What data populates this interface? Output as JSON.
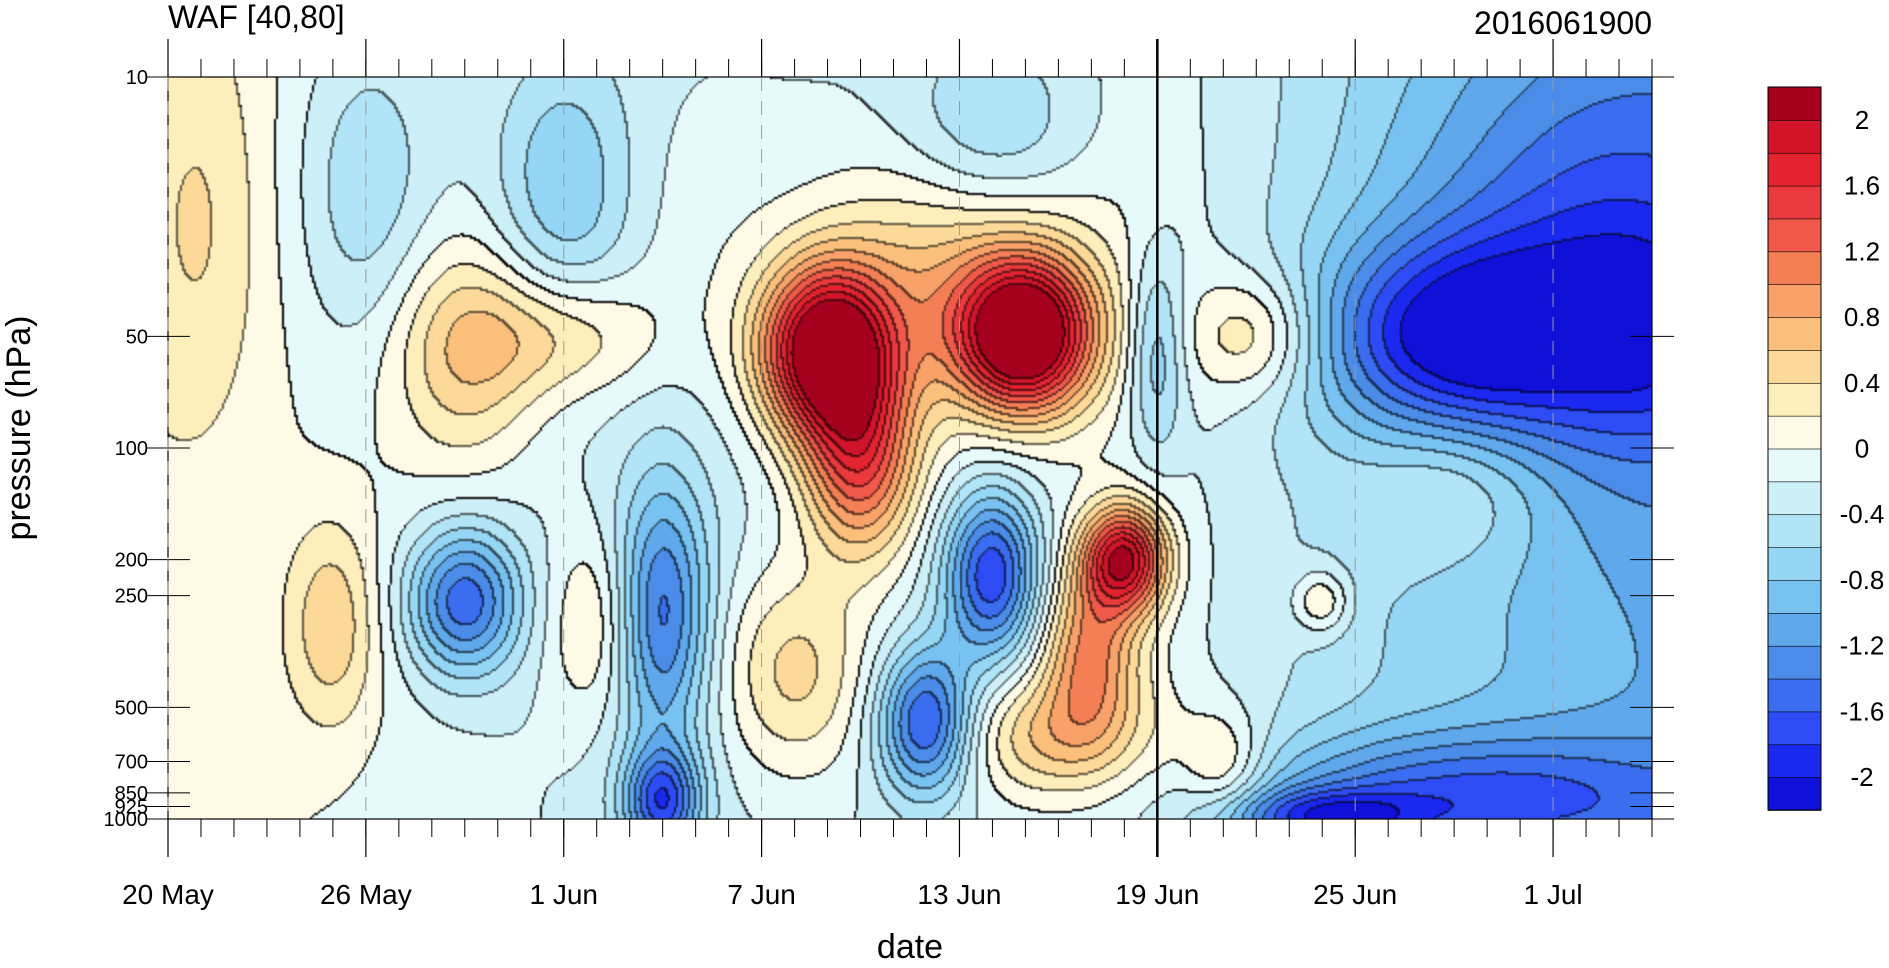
{
  "chart_data": {
    "type": "heatmap",
    "title_left": "WAF [40,80]",
    "title_right": "2016061900",
    "xlabel": "date",
    "ylabel": "pressure (hPa)",
    "x_axis": {
      "type": "date",
      "range": [
        "2016-05-20",
        "2016-07-04"
      ],
      "tick_labels": [
        {
          "date": "2016-05-20",
          "label": "20 May"
        },
        {
          "date": "2016-05-26",
          "label": "26 May"
        },
        {
          "date": "2016-06-01",
          "label": "1 Jun"
        },
        {
          "date": "2016-06-07",
          "label": "7 Jun"
        },
        {
          "date": "2016-06-13",
          "label": "13 Jun"
        },
        {
          "date": "2016-06-19",
          "label": "19 Jun"
        },
        {
          "date": "2016-06-25",
          "label": "25 Jun"
        },
        {
          "date": "2016-07-01",
          "label": "1 Jul"
        }
      ],
      "minor_tick_interval_days": 1
    },
    "y_axis": {
      "scale": "log",
      "reversed": true,
      "range": [
        1000,
        10
      ],
      "tick_labels": [
        {
          "value": 10,
          "label": "10"
        },
        {
          "value": 50,
          "label": "50"
        },
        {
          "value": 100,
          "label": "100"
        },
        {
          "value": 200,
          "label": "200"
        },
        {
          "value": 250,
          "label": "250"
        },
        {
          "value": 500,
          "label": "500"
        },
        {
          "value": 700,
          "label": "700"
        },
        {
          "value": 850,
          "label": "850"
        },
        {
          "value": 925,
          "label": "925"
        },
        {
          "value": 1000,
          "label": "1000"
        }
      ]
    },
    "reference_line": {
      "date": "2016-06-19",
      "style": "solid-black"
    },
    "colorbar": {
      "placement": "right",
      "levels": [
        -2.2,
        -2.0,
        -1.8,
        -1.6,
        -1.4,
        -1.2,
        -1.0,
        -0.8,
        -0.6,
        -0.4,
        -0.2,
        0.0,
        0.2,
        0.4,
        0.6,
        0.8,
        1.0,
        1.2,
        1.4,
        1.6,
        1.8,
        2.0,
        2.2
      ],
      "colors": [
        "#1010d8",
        "#1a28f0",
        "#2e4cf5",
        "#3b6df0",
        "#4b8ce8",
        "#5fa8ec",
        "#78c2f2",
        "#95d6f5",
        "#b0e4f6",
        "#cceff8",
        "#e6f9fb",
        "#fefae6",
        "#fdeebb",
        "#fcd998",
        "#fbbf7c",
        "#f8a26a",
        "#f57f55",
        "#f0584a",
        "#ea3a3d",
        "#e3232f",
        "#d2142a",
        "#a5001e"
      ],
      "tick_labels": [
        {
          "value": 2.0,
          "label": "2"
        },
        {
          "value": 1.6,
          "label": "1.6"
        },
        {
          "value": 1.2,
          "label": "1.2"
        },
        {
          "value": 0.8,
          "label": "0.8"
        },
        {
          "value": 0.4,
          "label": "0.4"
        },
        {
          "value": 0.0,
          "label": "0"
        },
        {
          "value": -0.4,
          "label": "-0.4"
        },
        {
          "value": -0.8,
          "label": "-0.8"
        },
        {
          "value": -1.2,
          "label": "-1.2"
        },
        {
          "value": -1.6,
          "label": "-1.6"
        },
        {
          "value": -2.0,
          "label": "-2"
        }
      ]
    },
    "features": [
      {
        "date": "2016-06-09",
        "pressure": 55,
        "amplitude": 2.6,
        "date_width": 1.4,
        "log_width": 0.16
      },
      {
        "date": "2016-06-10",
        "pressure": 110,
        "amplitude": 1.5,
        "date_width": 1.2,
        "log_width": 0.18
      },
      {
        "date": "2016-06-15",
        "pressure": 50,
        "amplitude": 2.5,
        "date_width": 1.4,
        "log_width": 0.14
      },
      {
        "date": "2016-06-13",
        "pressure": 35,
        "amplitude": 0.9,
        "date_width": 3.0,
        "log_width": 0.25
      },
      {
        "date": "2016-06-18",
        "pressure": 200,
        "amplitude": 2.1,
        "date_width": 0.9,
        "log_width": 0.1
      },
      {
        "date": "2016-06-17",
        "pressure": 350,
        "amplitude": 1.1,
        "date_width": 1.0,
        "log_width": 0.15
      },
      {
        "date": "2016-06-16",
        "pressure": 600,
        "amplitude": 0.8,
        "date_width": 2.0,
        "log_width": 0.12
      },
      {
        "date": "2016-06-08",
        "pressure": 400,
        "amplitude": 0.7,
        "date_width": 1.6,
        "log_width": 0.2
      },
      {
        "date": "2016-06-05",
        "pressure": 25,
        "amplitude": 0.2,
        "date_width": 2.0,
        "log_width": 0.3
      },
      {
        "date": "2016-05-29",
        "pressure": 55,
        "amplitude": 0.7,
        "date_width": 1.6,
        "log_width": 0.22
      },
      {
        "date": "2016-06-01",
        "pressure": 50,
        "amplitude": 0.6,
        "date_width": 2.0,
        "log_width": 0.12
      },
      {
        "date": "2016-05-21",
        "pressure": 25,
        "amplitude": 0.35,
        "date_width": 1.4,
        "log_width": 0.4
      },
      {
        "date": "2016-05-25",
        "pressure": 300,
        "amplitude": 0.6,
        "date_width": 1.0,
        "log_width": 0.2
      },
      {
        "date": "2016-06-02",
        "pressure": 300,
        "amplitude": 0.5,
        "date_width": 1.0,
        "log_width": 0.18
      },
      {
        "date": "2016-05-29",
        "pressure": 260,
        "amplitude": -1.4,
        "date_width": 1.2,
        "log_width": 0.14
      },
      {
        "date": "2016-06-04",
        "pressure": 280,
        "amplitude": -1.2,
        "date_width": 1.0,
        "log_width": 0.25
      },
      {
        "date": "2016-06-04",
        "pressure": 900,
        "amplitude": -1.4,
        "date_width": 0.8,
        "log_width": 0.1
      },
      {
        "date": "2016-06-14",
        "pressure": 220,
        "amplitude": -1.6,
        "date_width": 1.0,
        "log_width": 0.16
      },
      {
        "date": "2016-06-12",
        "pressure": 550,
        "amplitude": -1.5,
        "date_width": 1.0,
        "log_width": 0.14
      },
      {
        "date": "2016-05-26",
        "pressure": 20,
        "amplitude": -0.5,
        "date_width": 1.5,
        "log_width": 0.3
      },
      {
        "date": "2016-06-01",
        "pressure": 20,
        "amplitude": -0.6,
        "date_width": 1.5,
        "log_width": 0.25
      },
      {
        "date": "2016-06-14",
        "pressure": 15,
        "amplitude": -0.6,
        "date_width": 2.0,
        "log_width": 0.2
      },
      {
        "date": "2016-06-19",
        "pressure": 55,
        "amplitude": -0.7,
        "date_width": 0.6,
        "log_width": 0.2
      },
      {
        "date": "2016-06-22",
        "pressure": 50,
        "amplitude": 0.7,
        "date_width": 1.4,
        "log_width": 0.12
      },
      {
        "date": "2016-06-24",
        "pressure": 260,
        "amplitude": 0.6,
        "date_width": 0.6,
        "log_width": 0.06
      },
      {
        "date": "2016-06-21",
        "pressure": 720,
        "amplitude": 0.6,
        "date_width": 0.9,
        "log_width": 0.1
      },
      {
        "date": "2016-06-28",
        "pressure": 50,
        "amplitude": -1.3,
        "date_width": 3.0,
        "log_width": 0.18
      },
      {
        "date": "2016-07-02",
        "pressure": 30,
        "amplitude": -0.8,
        "date_width": 4.0,
        "log_width": 0.4
      },
      {
        "date": "2016-07-04",
        "pressure": 50,
        "amplitude": -0.5,
        "date_width": 2.0,
        "log_width": 0.2
      },
      {
        "date": "2016-06-28",
        "pressure": 130,
        "amplitude": 0.45,
        "date_width": 2.0,
        "log_width": 0.14
      },
      {
        "date": "2016-06-28",
        "pressure": 880,
        "amplitude": -1.0,
        "date_width": 5.0,
        "log_width": 0.12
      },
      {
        "date": "2016-06-24",
        "pressure": 990,
        "amplitude": -1.0,
        "date_width": 2.0,
        "log_width": 0.05
      }
    ],
    "background": [
      {
        "date": "2016-05-20",
        "value": 0.1
      },
      {
        "date": "2016-06-04",
        "value": -0.3
      },
      {
        "date": "2016-06-19",
        "value": -0.1
      },
      {
        "date": "2016-06-26",
        "value": -0.6
      },
      {
        "date": "2016-07-04",
        "value": -1.0
      }
    ]
  }
}
